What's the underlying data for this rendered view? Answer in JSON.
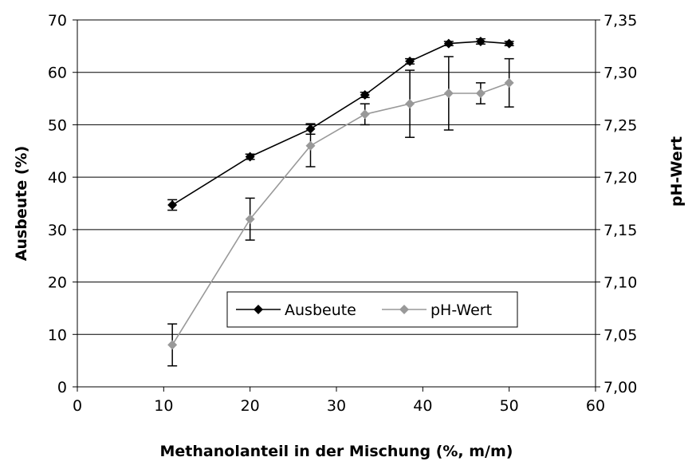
{
  "chart_data": {
    "type": "line",
    "title": "",
    "xlabel": "Methanolanteil in der Mischung (%, m/m)",
    "ylabel": "Ausbeute (%)",
    "y2label": "pH-Wert",
    "xlim": [
      0,
      60
    ],
    "ylim": [
      0,
      70
    ],
    "y2lim": [
      7.0,
      7.35
    ],
    "x_ticks": [
      "0",
      "10",
      "20",
      "30",
      "40",
      "50",
      "60"
    ],
    "y_ticks": [
      "0",
      "10",
      "20",
      "30",
      "40",
      "50",
      "60",
      "70"
    ],
    "y2_ticks": [
      "7,00",
      "7,05",
      "7,10",
      "7,15",
      "7,20",
      "7,25",
      "7,30",
      "7,35"
    ],
    "grid": "horizontal",
    "legend_position": "center-bottom",
    "series": [
      {
        "name": "Ausbeute",
        "axis": "left",
        "color": "#000000",
        "marker": "diamond",
        "x": [
          11,
          20,
          27,
          33.3,
          38.5,
          43,
          46.7,
          50
        ],
        "y": [
          34.7,
          43.9,
          49.2,
          55.7,
          62.1,
          65.5,
          65.9,
          65.5
        ],
        "error": [
          1.0,
          0.5,
          1.0,
          0.5,
          0.5,
          0.4,
          0.5,
          0.4
        ]
      },
      {
        "name": "pH-Wert",
        "axis": "right",
        "color": "#999999",
        "marker": "diamond",
        "x": [
          11,
          20,
          27,
          33.3,
          38.5,
          43,
          46.7,
          50
        ],
        "y": [
          7.04,
          7.16,
          7.23,
          7.26,
          7.27,
          7.28,
          7.28,
          7.29
        ],
        "error": [
          0.02,
          0.02,
          0.02,
          0.01,
          0.032,
          0.035,
          0.01,
          0.023
        ]
      }
    ]
  }
}
